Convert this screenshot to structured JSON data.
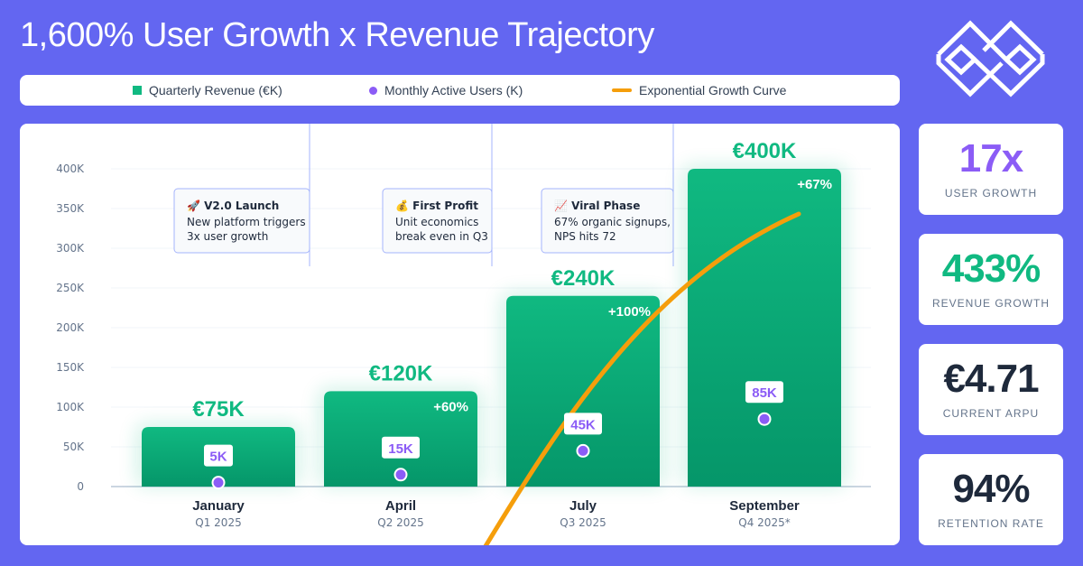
{
  "title": "1,600% User Growth x Revenue Trajectory",
  "legend": {
    "revenue": "Quarterly Revenue (€K)",
    "users": "Monthly Active Users (K)",
    "curve": "Exponential Growth Curve"
  },
  "colors": {
    "background": "#6366f1",
    "revenue": "#10b981",
    "users": "#8b5cf6",
    "curve": "#f59e0b"
  },
  "logo": "interlocking-diamond-logo",
  "chart_data": {
    "type": "bar",
    "categories": [
      "January",
      "April",
      "July",
      "September"
    ],
    "sublabels": [
      "Q1 2025",
      "Q2 2025",
      "Q3 2025",
      "Q4 2025*"
    ],
    "ylim": [
      0,
      400000
    ],
    "yticks": [
      "0",
      "50K",
      "100K",
      "150K",
      "200K",
      "250K",
      "300K",
      "350K",
      "400K"
    ],
    "grid": true,
    "legend_position": "top",
    "series": [
      {
        "name": "Quarterly Revenue (€K)",
        "type": "bar",
        "values": [
          75,
          120,
          240,
          400
        ],
        "labels": [
          "€75K",
          "€120K",
          "€240K",
          "€400K"
        ],
        "growth_labels": [
          "",
          "+60%",
          "+100%",
          "+67%"
        ]
      },
      {
        "name": "Monthly Active Users (K)",
        "type": "scatter",
        "values": [
          5,
          15,
          45,
          85
        ],
        "labels": [
          "5K",
          "15K",
          "45K",
          "85K"
        ]
      },
      {
        "name": "Exponential Growth Curve",
        "type": "line"
      }
    ],
    "annotations": [
      {
        "icon": "🚀",
        "title": "V2.0 Launch",
        "lines": [
          "New platform triggers",
          "3x user growth"
        ]
      },
      {
        "icon": "💰",
        "title": "First Profit",
        "lines": [
          "Unit economics",
          "break even in Q3"
        ]
      },
      {
        "icon": "📈",
        "title": "Viral Phase",
        "lines": [
          "67% organic signups,",
          "NPS hits 72"
        ]
      }
    ]
  },
  "stats": [
    {
      "value": "17x",
      "label": "USER GROWTH",
      "color": "#8b5cf6"
    },
    {
      "value": "433%",
      "label": "REVENUE GROWTH",
      "color": "#10b981"
    },
    {
      "value": "€4.71",
      "label": "CURRENT ARPU",
      "color": "#1e293b"
    },
    {
      "value": "94%",
      "label": "RETENTION RATE",
      "color": "#1e293b"
    }
  ]
}
